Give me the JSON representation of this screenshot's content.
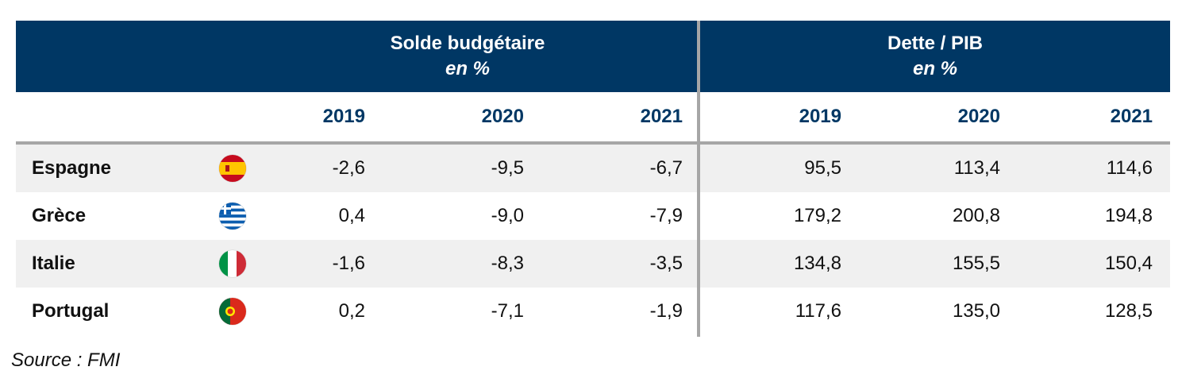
{
  "groups": [
    {
      "title": "Solde budgétaire",
      "unit": "en %"
    },
    {
      "title": "Dette / PIB",
      "unit": "en %"
    }
  ],
  "years": [
    "2019",
    "2020",
    "2021",
    "2019",
    "2020",
    "2021"
  ],
  "source": "Source : FMI",
  "colors": {
    "header_bg": "#003764",
    "year_text": "#003764",
    "separator": "#a6a6a6",
    "row_shade": "#f0f0f0"
  },
  "chart_data": {
    "type": "table",
    "columns": [
      "Solde budgétaire 2019",
      "Solde budgétaire 2020",
      "Solde budgétaire 2021",
      "Dette / PIB 2019",
      "Dette / PIB 2020",
      "Dette / PIB 2021"
    ],
    "rows": [
      {
        "country": "Espagne",
        "flag": "spain-flag-icon",
        "values": [
          "-2,6",
          "-9,5",
          "-6,7",
          "95,5",
          "113,4",
          "114,6"
        ]
      },
      {
        "country": "Grèce",
        "flag": "greece-flag-icon",
        "values": [
          "0,4",
          "-9,0",
          "-7,9",
          "179,2",
          "200,8",
          "194,8"
        ]
      },
      {
        "country": "Italie",
        "flag": "italy-flag-icon",
        "values": [
          "-1,6",
          "-8,3",
          "-3,5",
          "134,8",
          "155,5",
          "150,4"
        ]
      },
      {
        "country": "Portugal",
        "flag": "portugal-flag-icon",
        "values": [
          "0,2",
          "-7,1",
          "-1,9",
          "117,6",
          "135,0",
          "128,5"
        ]
      }
    ]
  }
}
